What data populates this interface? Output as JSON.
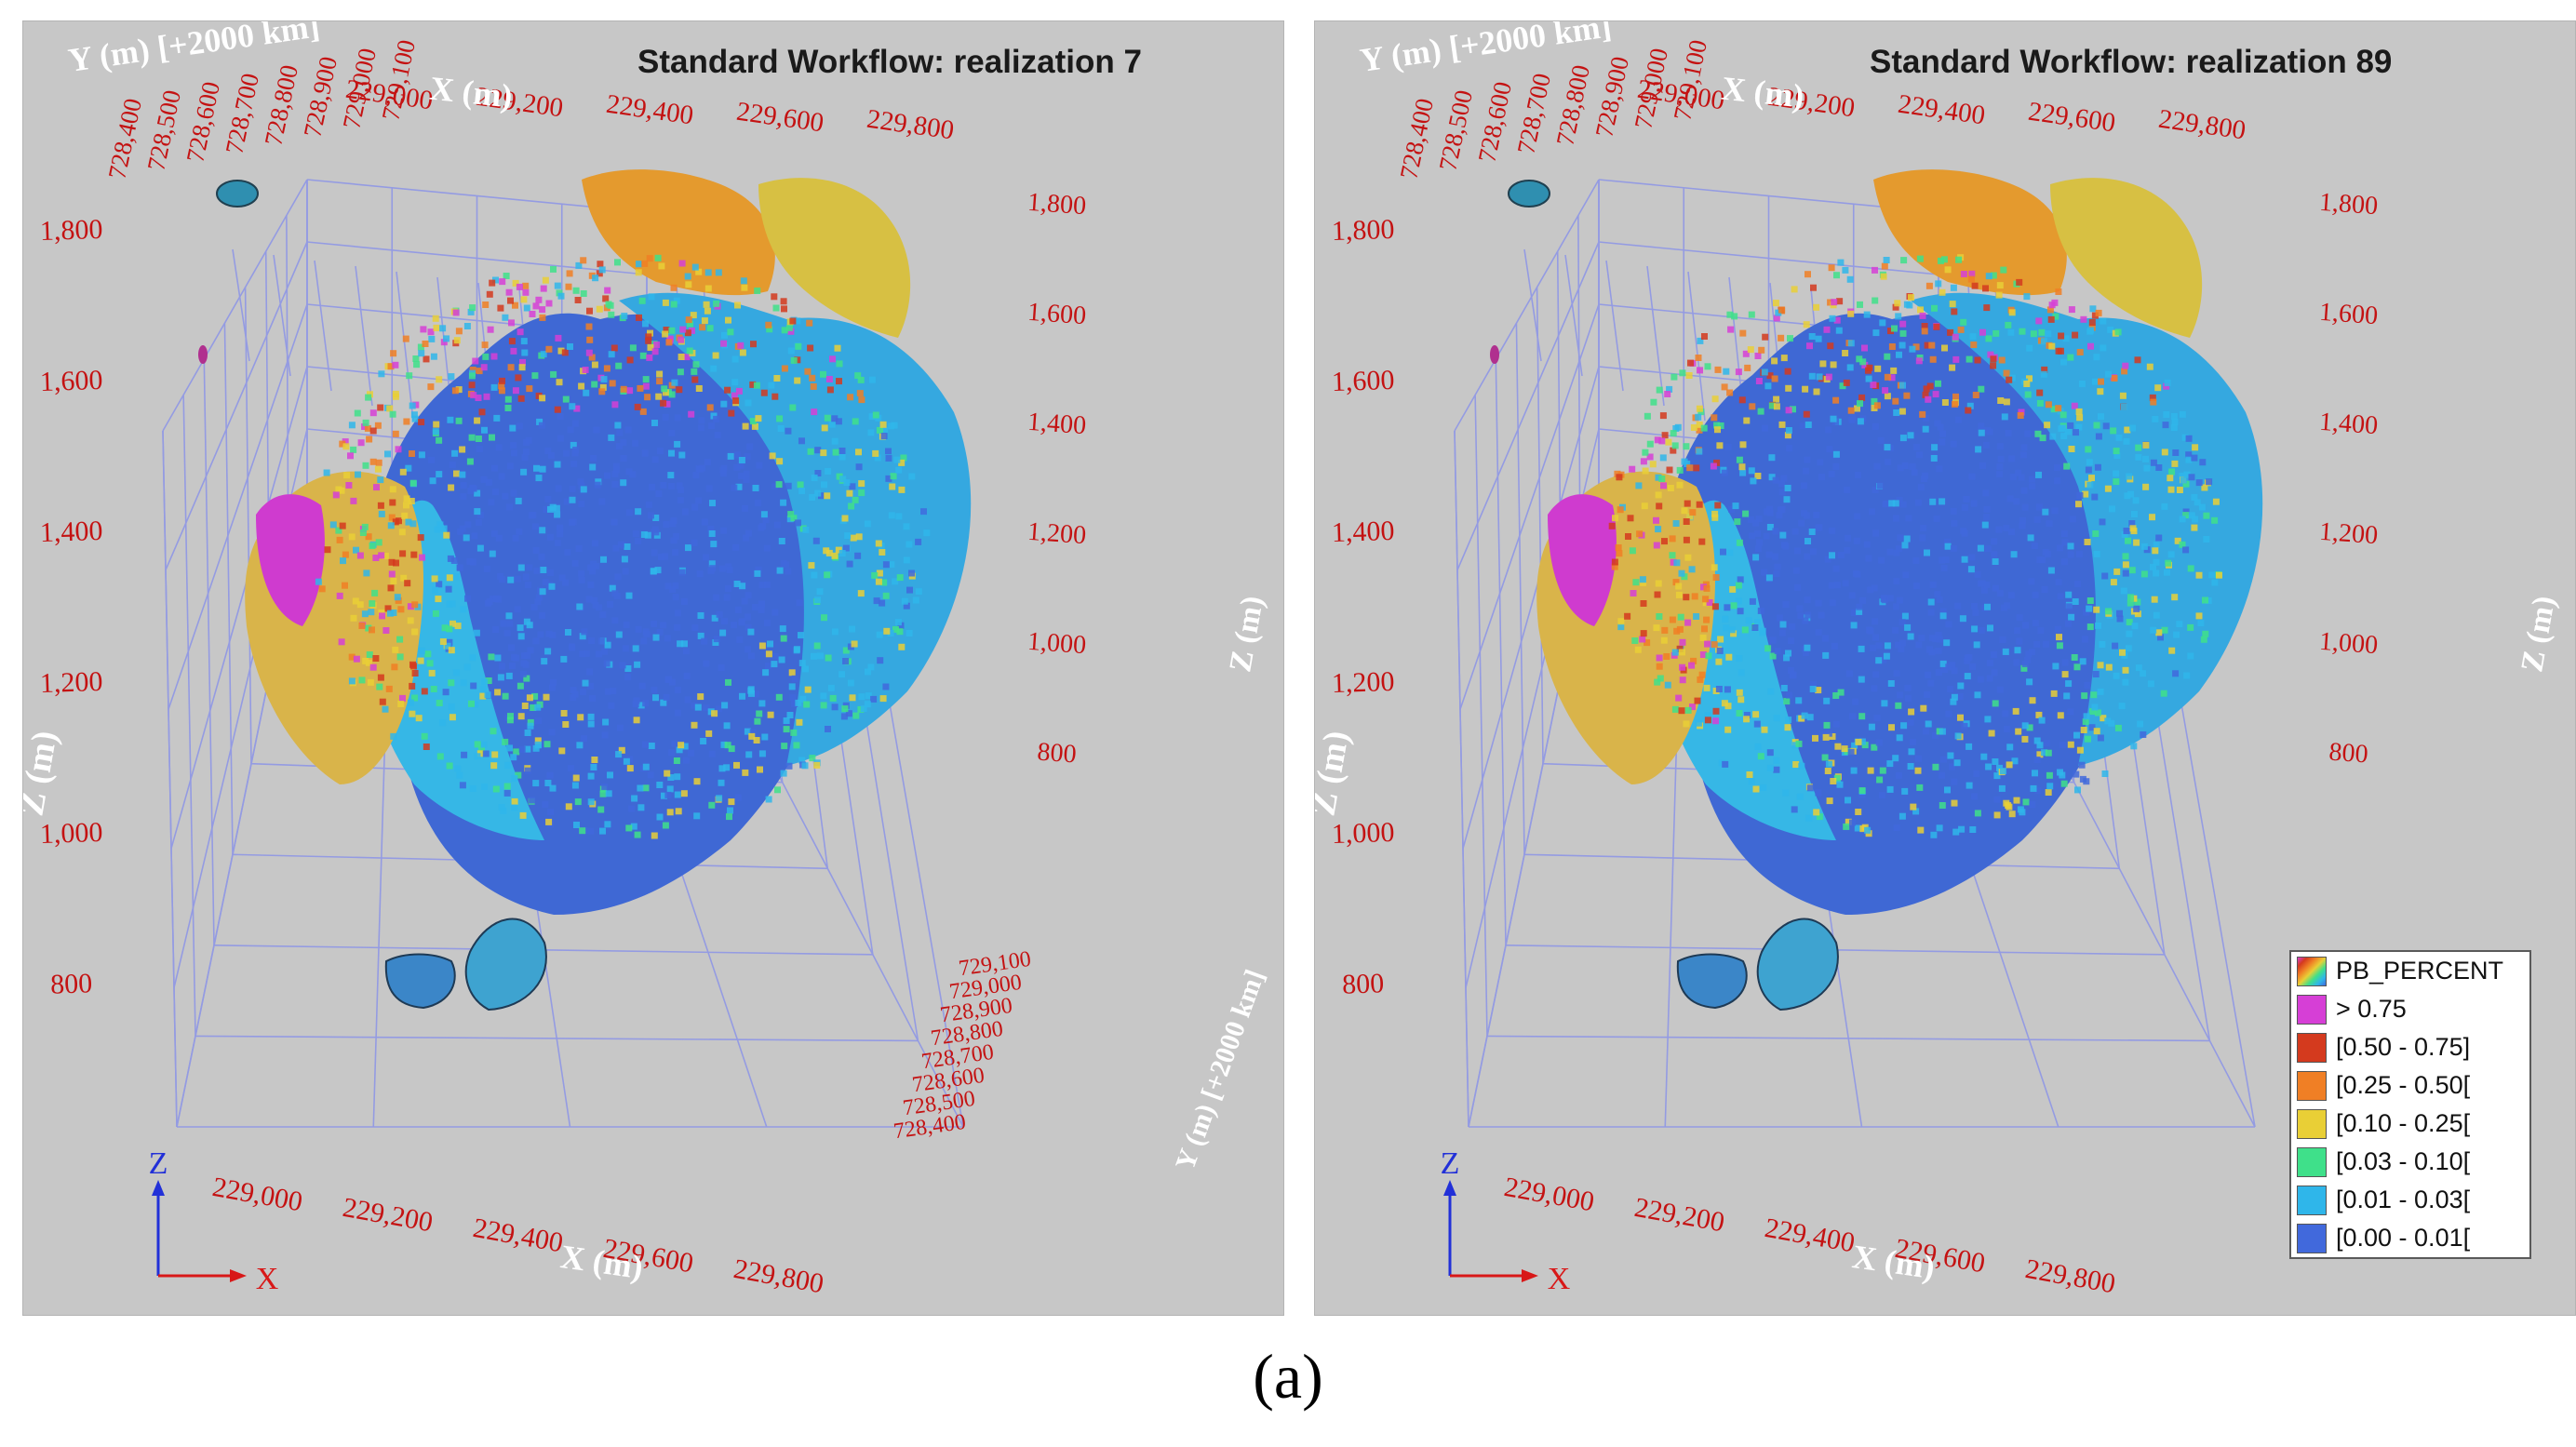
{
  "panels": [
    {
      "title": "Standard Workflow: realization 7",
      "show_legend": false,
      "y_ticks_top": [
        "728,400",
        "728,500",
        "728,600",
        "728,700",
        "728,800",
        "728,900",
        "729,000",
        "729,100"
      ],
      "x_ticks_top": [
        "229,000",
        "229,200",
        "229,400",
        "229,600",
        "229,800"
      ],
      "z_ticks_left": [
        "1,800",
        "1,600",
        "1,400",
        "1,200",
        "1,000",
        "800"
      ],
      "z_ticks_right": [
        "1,800",
        "1,600",
        "1,400",
        "1,200",
        "1,000",
        "800"
      ],
      "y_ticks_right": [
        "729,100",
        "729,000",
        "728,900",
        "728,800",
        "728,700",
        "728,600",
        "728,500",
        "728,400"
      ],
      "x_ticks_bottom": [
        "229,000",
        "229,200",
        "229,400",
        "229,600",
        "229,800"
      ],
      "labels": {
        "y_top": "Y (m) [+2000 km]",
        "x_top": "X (m)",
        "z_left": "Z (m)",
        "z_right": "Z (m)",
        "y_right": "Y (m) [+2000 km]",
        "x_bottom": "X (m)"
      },
      "triad": {
        "z": "Z",
        "x": "X"
      }
    },
    {
      "title": "Standard Workflow: realization 89",
      "show_legend": true,
      "y_ticks_top": [
        "728,400",
        "728,500",
        "728,600",
        "728,700",
        "728,800",
        "728,900",
        "729,000",
        "729,100"
      ],
      "x_ticks_top": [
        "229,000",
        "229,200",
        "229,400",
        "229,600",
        "229,800"
      ],
      "z_ticks_left": [
        "1,800",
        "1,600",
        "1,400",
        "1,200",
        "1,000",
        "800"
      ],
      "z_ticks_right": [
        "1,800",
        "1,600",
        "1,400",
        "1,200",
        "1,000",
        "800"
      ],
      "y_ticks_right": [
        "",
        "",
        "",
        "",
        "",
        "",
        "",
        ""
      ],
      "x_ticks_bottom": [
        "229,000",
        "229,200",
        "229,400",
        "229,600",
        "229,800"
      ],
      "labels": {
        "y_top": "Y (m) [+2000 km]",
        "x_top": "X (m)",
        "z_left": "Z (m)",
        "z_right": "Z (m)",
        "y_right": "",
        "x_bottom": "X (m)"
      },
      "triad": {
        "z": "Z",
        "x": "X"
      }
    }
  ],
  "legend": {
    "title": "PB_PERCENT",
    "items": [
      {
        "label": "> 0.75",
        "color": "#d63fd6"
      },
      {
        "label": "[0.50 - 0.75]",
        "color": "#d43a1e"
      },
      {
        "label": "[0.25 - 0.50[",
        "color": "#f07f25"
      },
      {
        "label": "[0.10 - 0.25[",
        "color": "#e9cf36"
      },
      {
        "label": "[0.03 - 0.10[",
        "color": "#3fe08a"
      },
      {
        "label": "[0.01 - 0.03[",
        "color": "#2fb6ea"
      },
      {
        "label": "[0.00 - 0.01[",
        "color": "#4169dc"
      }
    ]
  },
  "colors": {
    "panel_bg": "#c7c7c7",
    "grid": "#8f97e6",
    "tick_text": "#c41212",
    "axis_label": "#ffffff",
    "triad_z": "#2230d8",
    "triad_x": "#d81818"
  },
  "caption": "(a)"
}
